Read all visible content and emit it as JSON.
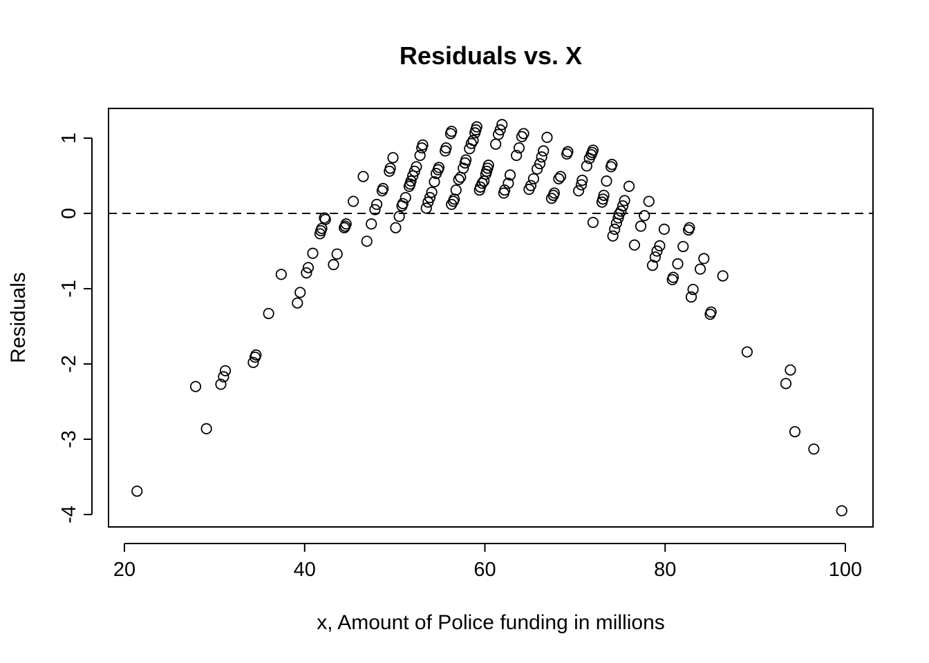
{
  "chart_data": {
    "type": "scatter",
    "title": "Residuals vs. X",
    "xlabel": "x, Amount of Police funding in millions",
    "ylabel": "Residuals",
    "xlim": [
      18.5,
      102.5
    ],
    "ylim": [
      -4.15,
      1.4
    ],
    "x_ticks": [
      20,
      40,
      60,
      80,
      100
    ],
    "y_ticks": [
      -4,
      -3,
      -2,
      -1,
      0,
      1
    ],
    "reference_line": {
      "y": 0,
      "style": "dashed"
    },
    "marker": "open-circle",
    "grid": false,
    "legend": "none",
    "points": [
      [
        21.4,
        -3.69
      ],
      [
        27.9,
        -2.3
      ],
      [
        29.1,
        -2.86
      ],
      [
        30.7,
        -2.27
      ],
      [
        31.0,
        -2.17
      ],
      [
        31.2,
        -2.09
      ],
      [
        34.3,
        -1.98
      ],
      [
        34.5,
        -1.91
      ],
      [
        34.6,
        -1.88
      ],
      [
        36.0,
        -1.33
      ],
      [
        37.4,
        -0.81
      ],
      [
        39.2,
        -1.19
      ],
      [
        39.5,
        -1.05
      ],
      [
        40.2,
        -0.79
      ],
      [
        40.4,
        -0.72
      ],
      [
        40.9,
        -0.53
      ],
      [
        41.7,
        -0.27
      ],
      [
        41.8,
        -0.23
      ],
      [
        41.9,
        -0.2
      ],
      [
        42.3,
        -0.08
      ],
      [
        42.2,
        -0.06
      ],
      [
        43.2,
        -0.68
      ],
      [
        43.6,
        -0.54
      ],
      [
        44.4,
        -0.19
      ],
      [
        44.5,
        -0.17
      ],
      [
        44.6,
        -0.14
      ],
      [
        45.4,
        0.16
      ],
      [
        46.5,
        0.49
      ],
      [
        46.9,
        -0.37
      ],
      [
        47.4,
        -0.14
      ],
      [
        47.8,
        0.05
      ],
      [
        48.0,
        0.12
      ],
      [
        48.6,
        0.3
      ],
      [
        48.7,
        0.33
      ],
      [
        49.4,
        0.56
      ],
      [
        49.5,
        0.6
      ],
      [
        49.8,
        0.74
      ],
      [
        50.1,
        -0.19
      ],
      [
        50.5,
        -0.04
      ],
      [
        50.8,
        0.1
      ],
      [
        50.9,
        0.13
      ],
      [
        51.2,
        0.21
      ],
      [
        51.6,
        0.36
      ],
      [
        51.7,
        0.39
      ],
      [
        51.8,
        0.43
      ],
      [
        52.0,
        0.5
      ],
      [
        52.2,
        0.56
      ],
      [
        52.4,
        0.62
      ],
      [
        52.8,
        0.77
      ],
      [
        53.0,
        0.87
      ],
      [
        53.1,
        0.91
      ],
      [
        53.5,
        0.07
      ],
      [
        53.7,
        0.15
      ],
      [
        53.9,
        0.21
      ],
      [
        54.1,
        0.28
      ],
      [
        54.4,
        0.42
      ],
      [
        54.6,
        0.53
      ],
      [
        54.8,
        0.58
      ],
      [
        54.9,
        0.61
      ],
      [
        55.6,
        0.83
      ],
      [
        55.7,
        0.87
      ],
      [
        56.2,
        1.06
      ],
      [
        56.3,
        1.09
      ],
      [
        56.3,
        0.12
      ],
      [
        56.5,
        0.16
      ],
      [
        56.6,
        0.19
      ],
      [
        56.8,
        0.31
      ],
      [
        57.1,
        0.45
      ],
      [
        57.3,
        0.48
      ],
      [
        57.6,
        0.6
      ],
      [
        57.8,
        0.67
      ],
      [
        57.9,
        0.71
      ],
      [
        58.3,
        0.86
      ],
      [
        58.5,
        0.93
      ],
      [
        58.7,
        0.97
      ],
      [
        58.9,
        1.07
      ],
      [
        59.0,
        1.11
      ],
      [
        59.1,
        1.15
      ],
      [
        59.4,
        0.31
      ],
      [
        59.5,
        0.35
      ],
      [
        59.7,
        0.4
      ],
      [
        59.9,
        0.43
      ],
      [
        60.1,
        0.52
      ],
      [
        60.2,
        0.56
      ],
      [
        60.3,
        0.6
      ],
      [
        60.4,
        0.64
      ],
      [
        61.2,
        0.92
      ],
      [
        61.5,
        1.05
      ],
      [
        61.7,
        1.11
      ],
      [
        61.9,
        1.18
      ],
      [
        62.1,
        0.27
      ],
      [
        62.2,
        0.31
      ],
      [
        62.6,
        0.4
      ],
      [
        62.8,
        0.51
      ],
      [
        63.5,
        0.77
      ],
      [
        63.8,
        0.87
      ],
      [
        64.1,
        1.02
      ],
      [
        64.3,
        1.06
      ],
      [
        64.9,
        0.32
      ],
      [
        65.1,
        0.37
      ],
      [
        65.4,
        0.46
      ],
      [
        65.8,
        0.59
      ],
      [
        66.1,
        0.66
      ],
      [
        66.3,
        0.75
      ],
      [
        66.5,
        0.83
      ],
      [
        66.9,
        1.01
      ],
      [
        67.4,
        0.2
      ],
      [
        67.6,
        0.24
      ],
      [
        67.7,
        0.27
      ],
      [
        68.2,
        0.46
      ],
      [
        68.4,
        0.49
      ],
      [
        69.1,
        0.79
      ],
      [
        69.2,
        0.82
      ],
      [
        70.4,
        0.3
      ],
      [
        70.7,
        0.38
      ],
      [
        70.8,
        0.44
      ],
      [
        71.3,
        0.63
      ],
      [
        71.6,
        0.73
      ],
      [
        71.8,
        0.78
      ],
      [
        71.9,
        0.81
      ],
      [
        72.0,
        0.84
      ],
      [
        72.0,
        -0.12
      ],
      [
        73.0,
        0.15
      ],
      [
        73.1,
        0.19
      ],
      [
        73.2,
        0.24
      ],
      [
        73.5,
        0.43
      ],
      [
        74.0,
        0.62
      ],
      [
        74.1,
        0.65
      ],
      [
        74.2,
        -0.3
      ],
      [
        74.4,
        -0.21
      ],
      [
        74.6,
        -0.13
      ],
      [
        74.8,
        -0.06
      ],
      [
        74.9,
        -0.01
      ],
      [
        75.1,
        0.03
      ],
      [
        75.3,
        0.1
      ],
      [
        75.5,
        0.17
      ],
      [
        76.0,
        0.36
      ],
      [
        76.6,
        -0.42
      ],
      [
        77.3,
        -0.17
      ],
      [
        77.7,
        -0.03
      ],
      [
        78.2,
        0.16
      ],
      [
        78.6,
        -0.69
      ],
      [
        78.9,
        -0.58
      ],
      [
        79.1,
        -0.5
      ],
      [
        79.4,
        -0.43
      ],
      [
        79.9,
        -0.21
      ],
      [
        80.8,
        -0.88
      ],
      [
        80.9,
        -0.85
      ],
      [
        81.4,
        -0.67
      ],
      [
        82.0,
        -0.44
      ],
      [
        82.6,
        -0.22
      ],
      [
        82.7,
        -0.19
      ],
      [
        82.9,
        -1.11
      ],
      [
        83.1,
        -1.01
      ],
      [
        83.9,
        -0.74
      ],
      [
        84.3,
        -0.6
      ],
      [
        85.0,
        -1.34
      ],
      [
        85.1,
        -1.31
      ],
      [
        86.4,
        -0.83
      ],
      [
        89.1,
        -1.84
      ],
      [
        93.4,
        -2.26
      ],
      [
        93.9,
        -2.08
      ],
      [
        94.4,
        -2.9
      ],
      [
        96.5,
        -3.13
      ],
      [
        99.6,
        -3.95
      ]
    ]
  }
}
